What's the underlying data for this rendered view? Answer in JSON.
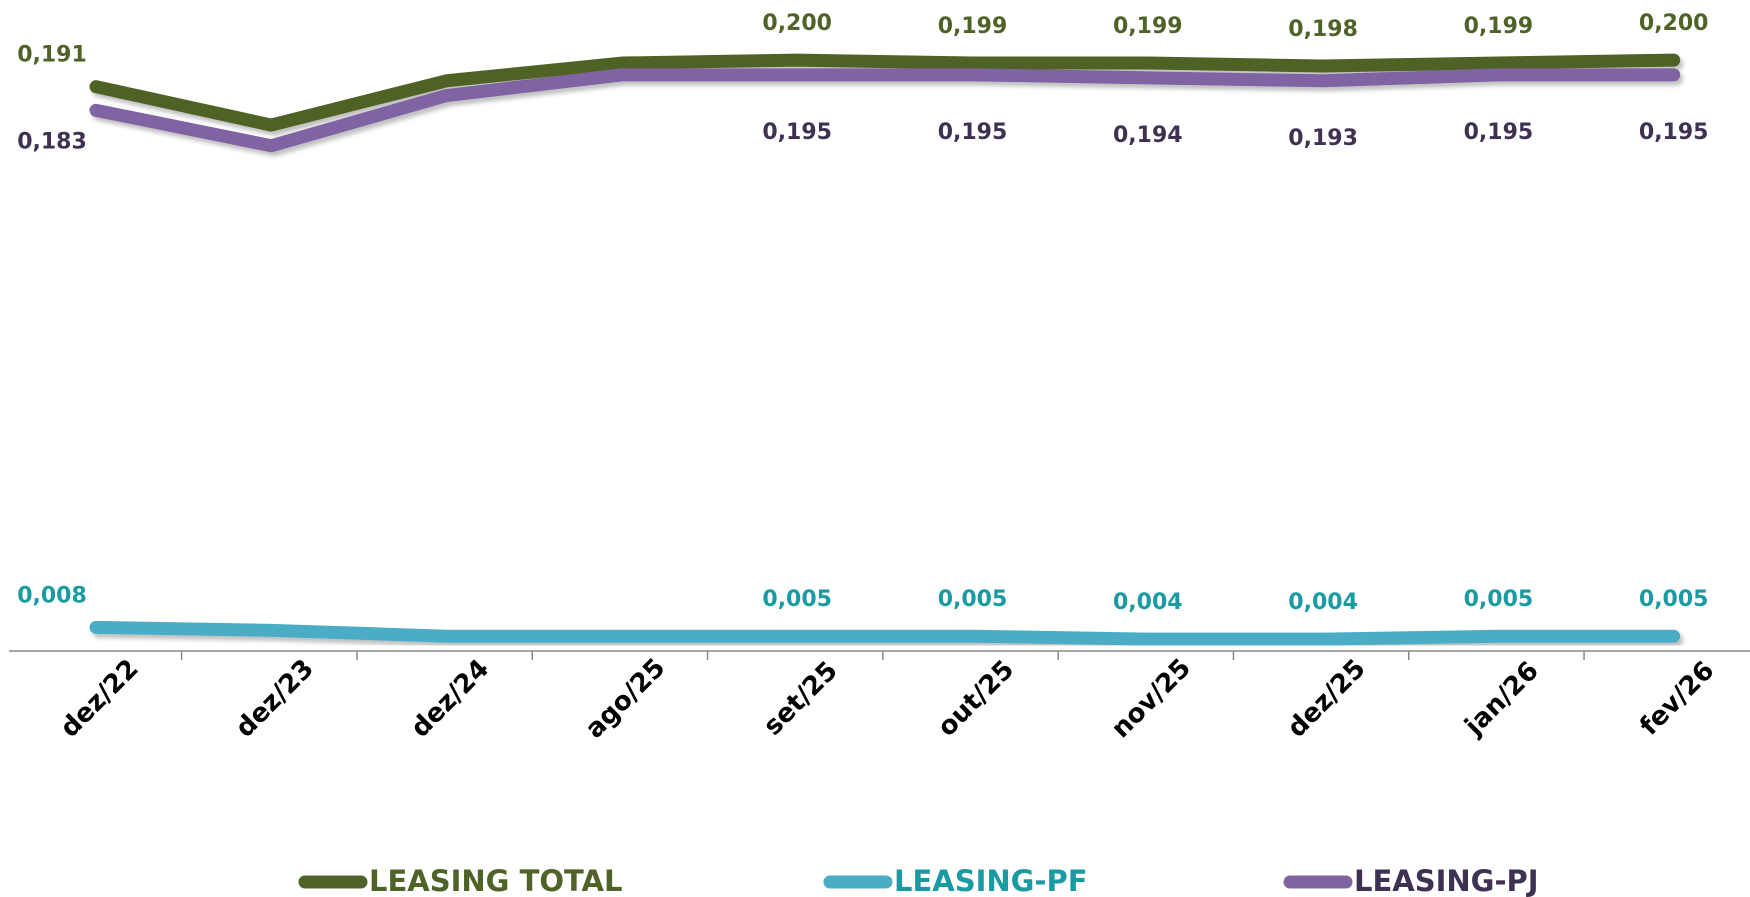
{
  "chart_data": {
    "type": "line",
    "categories": [
      "dez/22",
      "dez/23",
      "dez/24",
      "ago/25",
      "set/25",
      "out/25",
      "nov/25",
      "dez/25",
      "jan/26",
      "fev/26"
    ],
    "series": [
      {
        "name": "LEASING TOTAL",
        "color": "#4f6228",
        "label_color": "#4f6228",
        "label_side": "above",
        "values": [
          0.191,
          0.178,
          0.193,
          0.199,
          0.2,
          0.199,
          0.199,
          0.198,
          0.199,
          0.2
        ],
        "value_labels": [
          "0,191",
          null,
          null,
          null,
          "0,200",
          "0,199",
          "0,199",
          "0,198",
          "0,199",
          "0,200"
        ]
      },
      {
        "name": "LEASING-PF",
        "color": "#4bacc6",
        "label_color": "#1a9ba3",
        "label_side": "above",
        "values": [
          0.008,
          0.007,
          0.005,
          0.005,
          0.005,
          0.005,
          0.004,
          0.004,
          0.005,
          0.005
        ],
        "value_labels": [
          "0,008",
          null,
          null,
          null,
          "0,005",
          "0,005",
          "0,004",
          "0,004",
          "0,005",
          "0,005"
        ]
      },
      {
        "name": "LEASING-PJ",
        "color": "#8064a2",
        "label_color": "#3f3151",
        "label_side": "below",
        "values": [
          0.183,
          0.171,
          0.188,
          0.195,
          0.195,
          0.195,
          0.194,
          0.193,
          0.195,
          0.195
        ],
        "value_labels": [
          "0,183",
          null,
          null,
          null,
          "0,195",
          "0,195",
          "0,194",
          "0,193",
          "0,195",
          "0,195"
        ]
      }
    ],
    "ylim": [
      0,
      0.22
    ],
    "grid": false,
    "legend": "bottom"
  }
}
